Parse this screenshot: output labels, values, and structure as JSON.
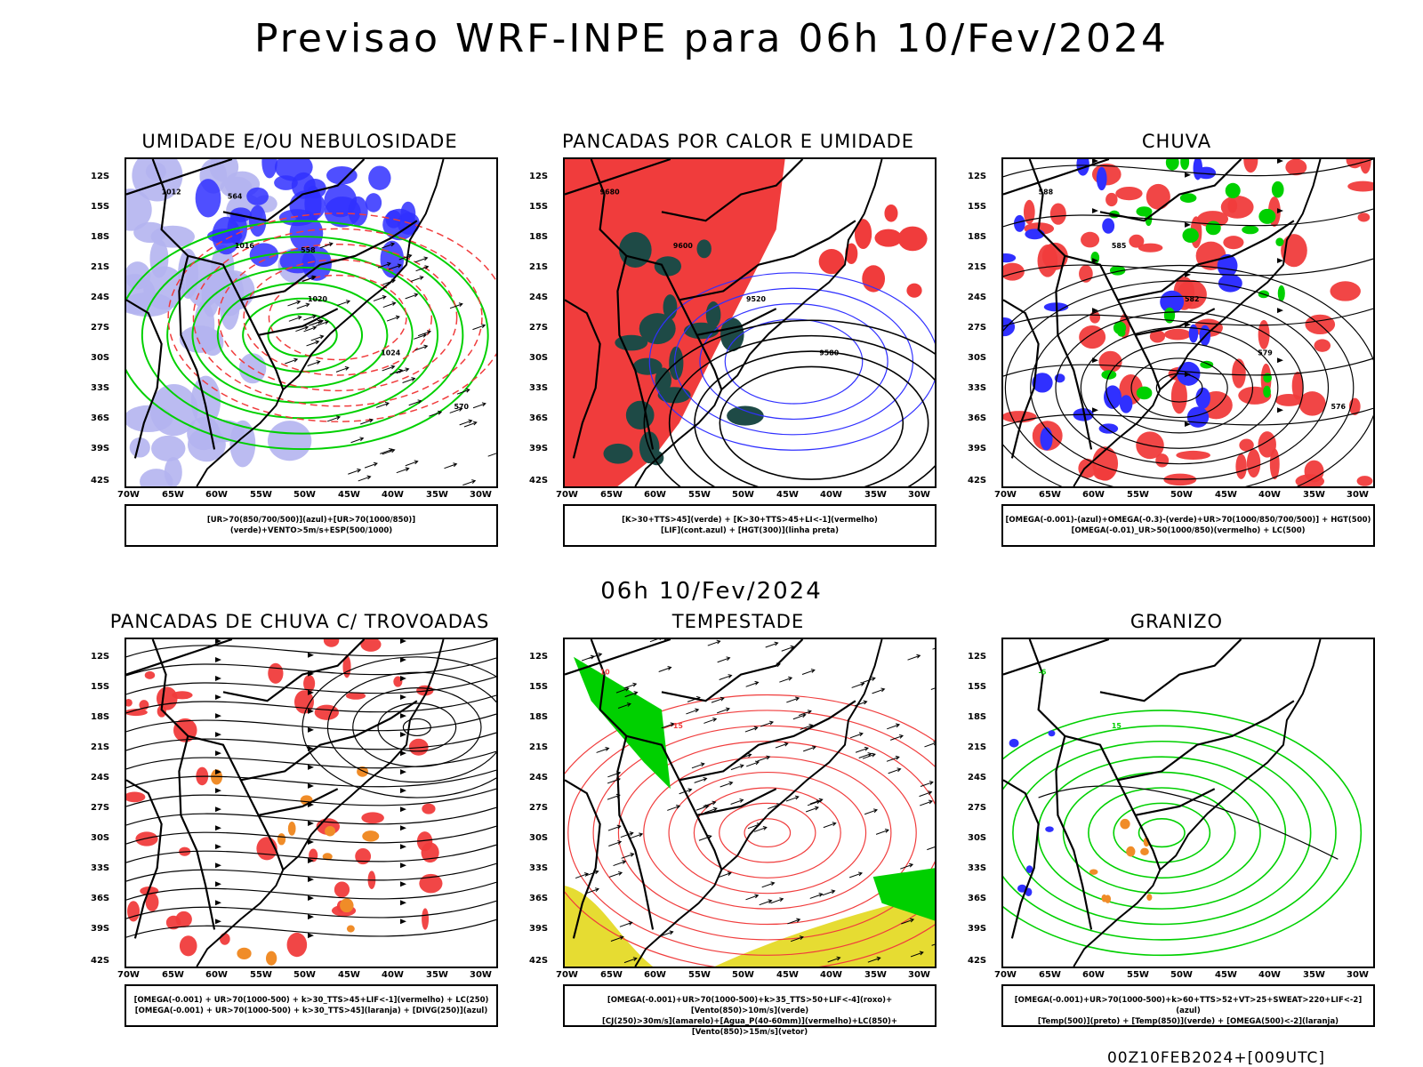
{
  "title": "Previsao WRF-INPE  para 06h 10/Fev/2024",
  "subtitle": "06h 10/Fev/2024",
  "footer": "00Z10FEB2024+[009UTC]",
  "axes": {
    "lat_labels": [
      "12S",
      "15S",
      "18S",
      "21S",
      "24S",
      "27S",
      "30S",
      "33S",
      "36S",
      "39S",
      "42S"
    ],
    "lon_labels": [
      "70W",
      "65W",
      "60W",
      "55W",
      "50W",
      "45W",
      "40W",
      "35W",
      "30W"
    ]
  },
  "colors": {
    "red": "#f03c3c",
    "green": "#00d000",
    "blue": "#3030ff",
    "lightblue": "#b4b4f0",
    "darkteal": "#1e4a46",
    "yellow": "#e6dc32",
    "orange": "#f08c28",
    "black": "#000000"
  },
  "panels": [
    {
      "title": "UMIDADE E/OU NEBULOSIDADE",
      "legend_lines": [
        "[UR>70(850/700/500)](azul)+[UR>70(1000/850)](verde)+VENTO>5m/s+ESP(500/1000)"
      ],
      "contour_labels": [
        "1012",
        "1016",
        "1020",
        "1024",
        "570",
        "564",
        "558"
      ]
    },
    {
      "title": "PANCADAS POR CALOR E UMIDADE",
      "legend_lines": [
        "[K>30+TTS>45](verde)  +  [K>30+TTS>45+LI<-1](vermelho)",
        "[LIF](cont.azul)  +  [HGT(300)](linha preta)"
      ],
      "contour_labels": [
        "9680",
        "9600",
        "9520",
        "9580"
      ]
    },
    {
      "title": "CHUVA",
      "legend_lines": [
        "[OMEGA(-0.001)-(azul)+OMEGA(-0.3)-(verde)+UR>70(1000/850/700/500)]  +  HGT(500)",
        "[OMEGA(-0.01)_UR>50(1000/850)(vermelho)  +  LC(500)"
      ],
      "contour_labels": [
        "588",
        "585",
        "582",
        "579",
        "576"
      ]
    },
    {
      "title": "PANCADAS DE CHUVA C/ TROVOADAS",
      "legend_lines": [
        "[OMEGA(-0.001)  +  UR>70(1000-500)  +  k>30_TTS>45+LIF<-1](vermelho)  +  LC(250)",
        "[OMEGA(-0.001)  +  UR>70(1000-500)  +  k>30_TTS>45](laranja)  +  [DIVG(250)](azul)"
      ],
      "contour_labels": []
    },
    {
      "title": "TEMPESTADE",
      "legend_lines": [
        "[OMEGA(-0.001)+UR>70(1000-500)+k>35_TTS>50+LIF<-4](roxo)+[Vento(850)>10m/s](verde)",
        "[CJ(250)>30m/s](amarelo)+[Agua_P(40-60mm)](vermelho)+LC(850)+[Vento(850)>15m/s](vetor)"
      ],
      "contour_labels": [
        "10",
        "15"
      ]
    },
    {
      "title": "GRANIZO",
      "legend_lines": [
        "[OMEGA(-0.001)+UR>70(1000-500)+k>60+TTS>52+VT>25+SWEAT>220+LIF<-2](azul)",
        "[Temp(500)](preto)  +  [Temp(850)](verde)  +  [OMEGA(500)<-2](laranja)"
      ],
      "contour_labels": [
        "-6",
        "15"
      ]
    }
  ]
}
